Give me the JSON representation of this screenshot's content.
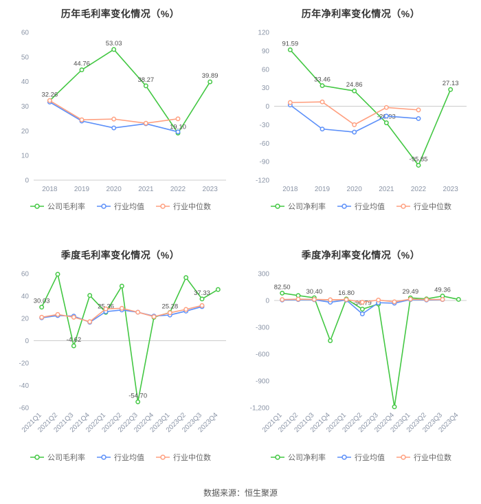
{
  "page": {
    "background": "#ffffff"
  },
  "footer": {
    "source": "数据来源：恒生聚源"
  },
  "palette": {
    "company": "#42c742",
    "industry_mean": "#5b8ff9",
    "industry_median": "#ff9f7f",
    "axis_line": "#cccccc",
    "tick_text": "#8a94a6",
    "label_text": "#4d4d4d",
    "title_text": "#333333",
    "legend_text": "#666666"
  },
  "chart_data": [
    {
      "type": "line",
      "title": "历年毛利率变化情况（%）",
      "categories": [
        "2018",
        "2019",
        "2020",
        "2021",
        "2022",
        "2023"
      ],
      "ylim": [
        0,
        60
      ],
      "yticks": [
        0,
        10,
        20,
        30,
        40,
        50,
        60
      ],
      "ytick_labels": [
        "0",
        "10",
        "20",
        "30",
        "40",
        "50",
        "60"
      ],
      "rotate_x_labels": false,
      "grid": false,
      "legend_position": "bottom",
      "series": [
        {
          "name": "公司毛利率",
          "color": "#42c742",
          "values": [
            32.26,
            44.76,
            53.03,
            38.27,
            19.1,
            39.89
          ],
          "labels": [
            "32.26",
            "44.76",
            "53.03",
            "38.27",
            "19.10",
            "39.89"
          ]
        },
        {
          "name": "行业均值",
          "color": "#5b8ff9",
          "values": [
            31.7,
            24.0,
            21.2,
            22.9,
            19.6,
            null
          ]
        },
        {
          "name": "行业中位数",
          "color": "#ff9f7f",
          "values": [
            32.3,
            24.5,
            24.8,
            23.1,
            24.9,
            null
          ]
        }
      ]
    },
    {
      "type": "line",
      "title": "历年净利率变化情况（%）",
      "categories": [
        "2018",
        "2019",
        "2020",
        "2021",
        "2022",
        "2023"
      ],
      "ylim": [
        -120,
        120
      ],
      "yticks": [
        -120,
        -90,
        -60,
        -30,
        0,
        30,
        60,
        90,
        120
      ],
      "ytick_labels": [
        "-120",
        "-90",
        "-60",
        "-30",
        "0",
        "30",
        "60",
        "90",
        "120"
      ],
      "rotate_x_labels": false,
      "grid": false,
      "legend_position": "bottom",
      "series": [
        {
          "name": "公司净利率",
          "color": "#42c742",
          "values": [
            91.59,
            33.46,
            24.86,
            -26.93,
            -95.85,
            27.13
          ],
          "labels": [
            "91.59",
            "33.46",
            "24.86",
            "-26.93",
            "-95.85",
            "27.13"
          ]
        },
        {
          "name": "行业均值",
          "color": "#5b8ff9",
          "values": [
            2,
            -37,
            -42,
            -16,
            -20,
            null
          ]
        },
        {
          "name": "行业中位数",
          "color": "#ff9f7f",
          "values": [
            6,
            7,
            -30,
            -2,
            -6,
            null
          ]
        }
      ]
    },
    {
      "type": "line",
      "title": "季度毛利率变化情况（%）",
      "categories": [
        "2021Q1",
        "2021Q2",
        "2021Q3",
        "2021Q4",
        "2022Q1",
        "2022Q2",
        "2022Q3",
        "2022Q4",
        "2023Q1",
        "2023Q2",
        "2023Q3",
        "2023Q4"
      ],
      "ylim": [
        -60,
        60
      ],
      "yticks": [
        -60,
        -40,
        -20,
        0,
        20,
        40,
        60
      ],
      "ytick_labels": [
        "-60",
        "-40",
        "-20",
        "0",
        "20",
        "40",
        "60"
      ],
      "rotate_x_labels": true,
      "grid": false,
      "legend_position": "bottom",
      "series": [
        {
          "name": "公司毛利率",
          "color": "#42c742",
          "values": [
            30.03,
            59.5,
            -4.62,
            40.5,
            25.36,
            48.9,
            -54.7,
            21.0,
            25.28,
            56.5,
            37.33,
            45.8
          ],
          "labels": [
            "30.03",
            null,
            "-4.62",
            null,
            "25.36",
            null,
            "-54.70",
            null,
            "25.28",
            null,
            "37.33",
            null
          ]
        },
        {
          "name": "行业均值",
          "color": "#5b8ff9",
          "values": [
            20.5,
            22.5,
            22.0,
            16.5,
            26.0,
            27.5,
            25.5,
            22.0,
            23.0,
            26.5,
            30.5,
            null
          ]
        },
        {
          "name": "行业中位数",
          "color": "#ff9f7f",
          "values": [
            21.0,
            23.5,
            21.0,
            17.0,
            28.5,
            29.0,
            25.5,
            21.5,
            25.0,
            28.0,
            31.5,
            null
          ]
        }
      ]
    },
    {
      "type": "line",
      "title": "季度净利率变化情况（%）",
      "categories": [
        "2021Q1",
        "2021Q2",
        "2021Q3",
        "2021Q4",
        "2022Q1",
        "2022Q2",
        "2022Q3",
        "2022Q4",
        "2023Q1",
        "2023Q2",
        "2023Q3",
        "2023Q4"
      ],
      "ylim": [
        -1200,
        300
      ],
      "yticks": [
        -1200,
        -900,
        -600,
        -300,
        0,
        300
      ],
      "ytick_labels": [
        "-1,200",
        "-900",
        "-600",
        "-300",
        "0",
        "300"
      ],
      "rotate_x_labels": true,
      "grid": false,
      "legend_position": "bottom",
      "series": [
        {
          "name": "公司净利率",
          "color": "#42c742",
          "values": [
            82.5,
            55,
            30.4,
            -450,
            16.8,
            -96.79,
            -40,
            -1190,
            29.49,
            18,
            49.36,
            12
          ],
          "labels": [
            "82.50",
            null,
            "30.40",
            null,
            "16.80",
            "-96.79",
            null,
            null,
            "29.49",
            null,
            "49.36",
            null
          ]
        },
        {
          "name": "行业均值",
          "color": "#5b8ff9",
          "values": [
            5,
            10,
            8,
            -20,
            5,
            -150,
            -25,
            -30,
            10,
            5,
            10,
            null
          ]
        },
        {
          "name": "行业中位数",
          "color": "#ff9f7f",
          "values": [
            10,
            15,
            12,
            8,
            10,
            -20,
            5,
            -15,
            15,
            10,
            12,
            null
          ]
        }
      ]
    }
  ]
}
